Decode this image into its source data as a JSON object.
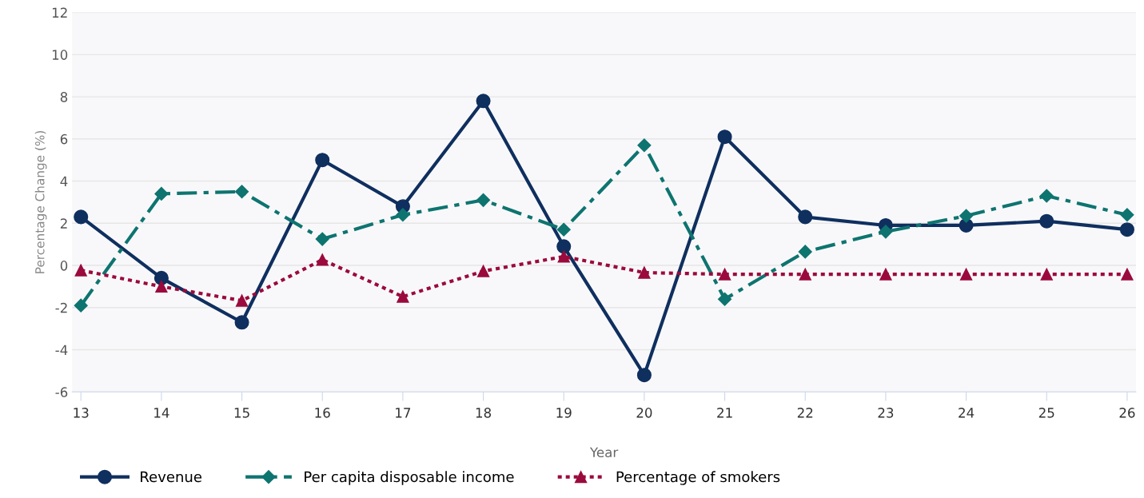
{
  "chart_data": {
    "type": "line",
    "xlabel": "Year",
    "ylabel": "Percentage Change (%)",
    "x": [
      13,
      14,
      15,
      16,
      17,
      18,
      19,
      20,
      21,
      22,
      23,
      24,
      25,
      26
    ],
    "xlim": [
      12.89,
      26.11
    ],
    "xticks": [
      13,
      14,
      15,
      16,
      17,
      18,
      19,
      20,
      21,
      22,
      23,
      24,
      25,
      26
    ],
    "ylim": [
      -6,
      12
    ],
    "yticks": [
      -6,
      -4,
      -2,
      0,
      2,
      4,
      6,
      8,
      10,
      12
    ],
    "grid": "y",
    "legend": "bottom left",
    "series": [
      {
        "name": "Revenue",
        "color": "#0f2f5f",
        "marker": "circle",
        "line_style": "solid",
        "values": [
          2.3,
          -0.6,
          -2.7,
          5.0,
          2.8,
          7.8,
          0.9,
          -5.2,
          6.1,
          2.3,
          1.9,
          1.9,
          2.1,
          1.7
        ]
      },
      {
        "name": "Per capita disposable income",
        "color": "#0e7470",
        "marker": "diamond",
        "line_style": "dashdot",
        "values": [
          -1.9,
          3.4,
          3.5,
          1.25,
          2.4,
          3.1,
          1.7,
          5.7,
          -1.6,
          0.65,
          1.6,
          2.35,
          3.3,
          2.4
        ]
      },
      {
        "name": "Percentage of smokers",
        "color": "#9b0a3c",
        "marker": "triangle",
        "line_style": "dotted",
        "values": [
          -0.23,
          -1.0,
          -1.67,
          0.27,
          -1.48,
          -0.27,
          0.42,
          -0.34,
          -0.42,
          -0.42,
          -0.42,
          -0.42,
          -0.42,
          -0.42
        ]
      }
    ]
  }
}
